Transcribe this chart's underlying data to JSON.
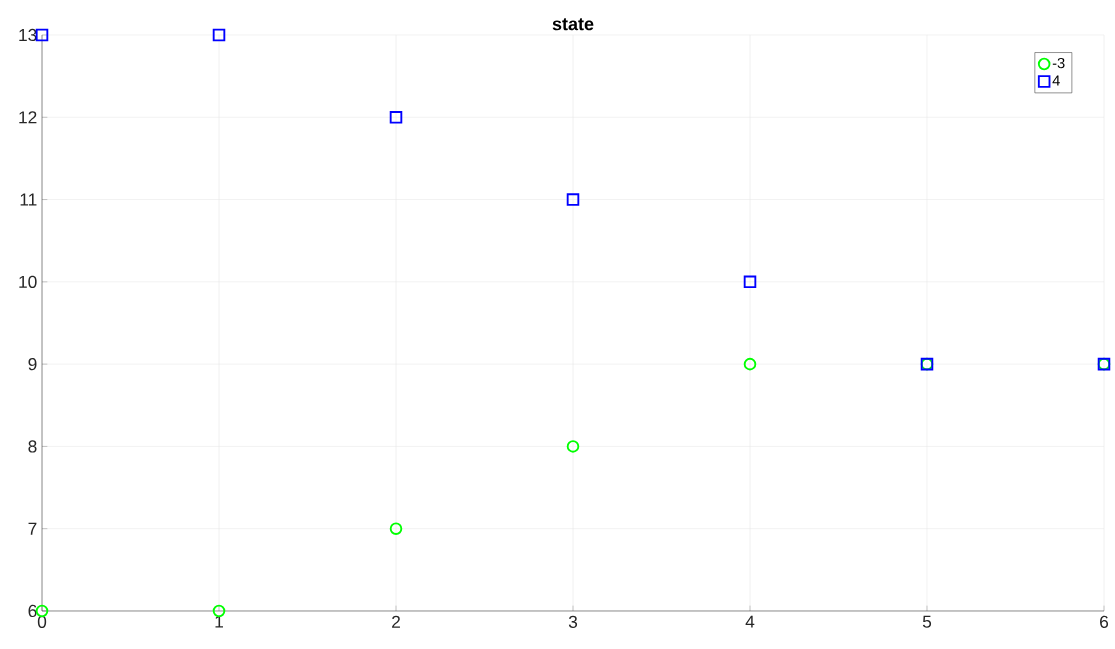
{
  "chart_data": {
    "type": "scatter",
    "title": "state",
    "x": [
      0,
      1,
      2,
      3,
      4,
      5,
      6
    ],
    "series": [
      {
        "name": "-3",
        "color": "#00ff00",
        "marker": "circle",
        "values": [
          6,
          6,
          7,
          8,
          9,
          9,
          9
        ]
      },
      {
        "name": "4",
        "color": "#0000ff",
        "marker": "square",
        "values": [
          13,
          13,
          12,
          11,
          10,
          9,
          9
        ]
      }
    ],
    "xlim": [
      0,
      6
    ],
    "ylim": [
      6,
      13
    ],
    "xticks": [
      0,
      1,
      2,
      3,
      4,
      5,
      6
    ],
    "yticks": [
      6,
      7,
      8,
      9,
      10,
      11,
      12,
      13
    ],
    "grid": true,
    "legend": "top right"
  }
}
